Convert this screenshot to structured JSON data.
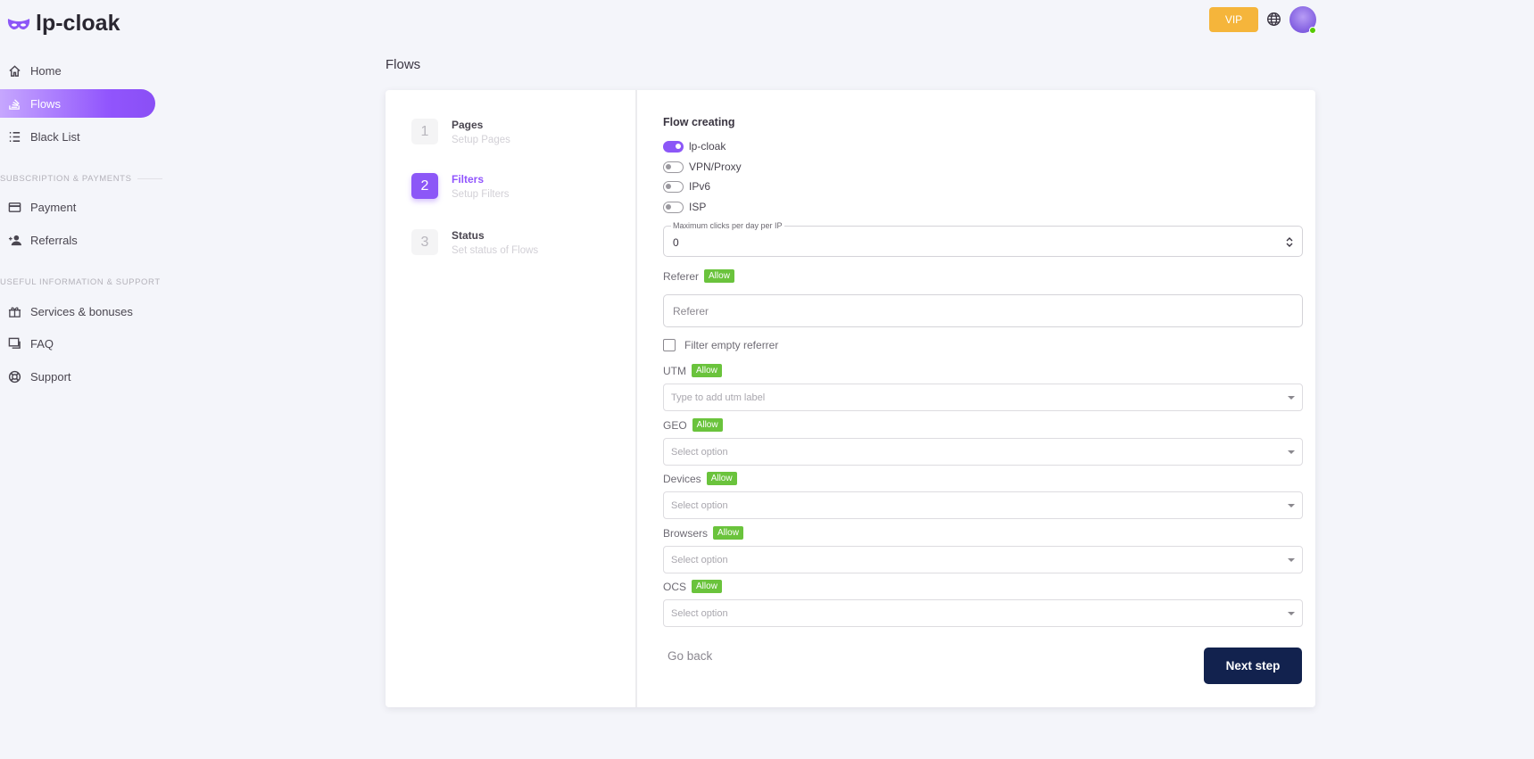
{
  "brand": {
    "name": "lp-cloak",
    "accent": "#9155fd"
  },
  "header": {
    "vip_label": "VIP",
    "vip_color": "#f5b53b",
    "language_icon": "globe-icon",
    "avatar_status": "online"
  },
  "sidebar": {
    "items": [
      {
        "label": "Home",
        "icon": "home-icon"
      },
      {
        "label": "Flows",
        "icon": "flows-icon",
        "active": true
      },
      {
        "label": "Black List",
        "icon": "list-icon"
      }
    ],
    "section1": "SUBSCRIPTION & PAYMENTS",
    "items2": [
      {
        "label": "Payment",
        "icon": "credit-card-icon"
      },
      {
        "label": "Referrals",
        "icon": "user-star-icon"
      }
    ],
    "section2": "USEFUL INFORMATION & SUPPORT",
    "items3": [
      {
        "label": "Services & bonuses",
        "icon": "gift-icon"
      },
      {
        "label": "FAQ",
        "icon": "faq-icon"
      },
      {
        "label": "Support",
        "icon": "lifebuoy-icon"
      }
    ]
  },
  "page": {
    "title": "Flows"
  },
  "steps": [
    {
      "number": "1",
      "title": "Pages",
      "subtitle": "Setup Pages"
    },
    {
      "number": "2",
      "title": "Filters",
      "subtitle": "Setup Filters",
      "active": true
    },
    {
      "number": "3",
      "title": "Status",
      "subtitle": "Set status of Flows"
    }
  ],
  "form": {
    "heading": "Flow creating",
    "toggles": [
      {
        "label": "lp-cloak",
        "on": true
      },
      {
        "label": "VPN/Proxy",
        "on": false
      },
      {
        "label": "IPv6",
        "on": false
      },
      {
        "label": "ISP",
        "on": false
      }
    ],
    "max_clicks": {
      "label": "Maximum clicks per day per IP",
      "value": "0"
    },
    "referer": {
      "label": "Referer",
      "badge": "Allow",
      "placeholder": "Referer"
    },
    "filter_empty": {
      "label": "Filter empty referrer",
      "checked": false
    },
    "utm": {
      "label": "UTM",
      "badge": "Allow",
      "placeholder": "Type to add utm label"
    },
    "geo": {
      "label": "GEO",
      "badge": "Allow",
      "placeholder": "Select option"
    },
    "devices": {
      "label": "Devices",
      "badge": "Allow",
      "placeholder": "Select option"
    },
    "browsers": {
      "label": "Browsers",
      "badge": "Allow",
      "placeholder": "Select option"
    },
    "ocs": {
      "label": "OCS",
      "badge": "Allow",
      "placeholder": "Select option"
    },
    "go_back": "Go back",
    "next_step": "Next step"
  }
}
